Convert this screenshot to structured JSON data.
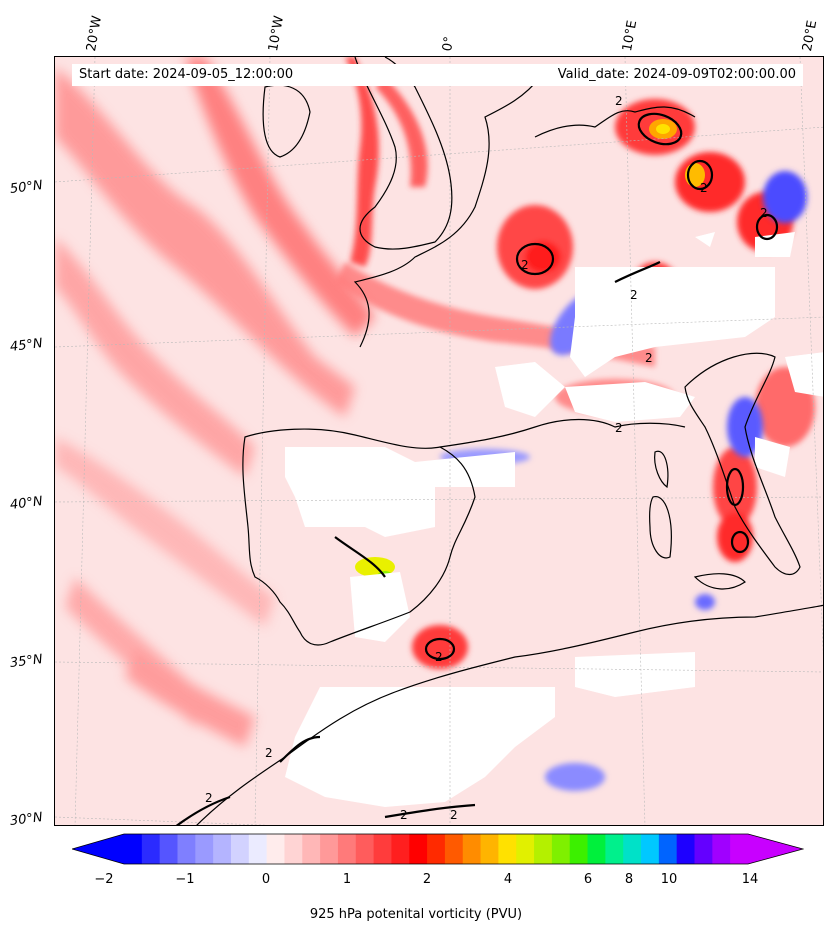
{
  "map": {
    "projection": "regional lat-lon map of Western Europe and Mediterranean",
    "background_color": "#fde8e8",
    "coastline_color": "#000000",
    "missing_data_color": "#ffffff"
  },
  "top_longitude_labels": [
    "20°W",
    "10°W",
    "0°",
    "10°E",
    "20°E"
  ],
  "latitude_labels": [
    "50°N",
    "45°N",
    "40°N",
    "35°N",
    "30°N"
  ],
  "header": {
    "start_date": "Start date: 2024-09-05_12:00:00",
    "valid_date": "Valid_date: 2024-09-09T02:00:00.00"
  },
  "contour_labels": [
    "2",
    "2",
    "2",
    "2",
    "2",
    "2",
    "2",
    "2",
    "2",
    "2",
    "2",
    "2"
  ],
  "colorbar": {
    "label": "925 hPa potenital vorticity (PVU)",
    "ticks": [
      "−2",
      "−1",
      "0",
      "1",
      "2",
      "4",
      "6",
      "8",
      "10",
      "14"
    ],
    "colors": [
      "#0000ff",
      "#2b2bff",
      "#5555ff",
      "#7f7fff",
      "#9a9aff",
      "#b4b4ff",
      "#d2d2ff",
      "#ebebff",
      "#ffecec",
      "#ffd4d4",
      "#ffb7b7",
      "#ff9999",
      "#ff7a7a",
      "#ff5c5c",
      "#ff3c3c",
      "#ff1f1f",
      "#ff0000",
      "#ff2a00",
      "#ff5a00",
      "#ff8c00",
      "#ffb400",
      "#ffe100",
      "#e1f000",
      "#b4f000",
      "#7ff000",
      "#3cf000",
      "#00f03c",
      "#00f08c",
      "#00e1c8",
      "#00c8ff",
      "#0064ff",
      "#1e00ff",
      "#6400ff",
      "#a000ff",
      "#c800ff"
    ]
  }
}
